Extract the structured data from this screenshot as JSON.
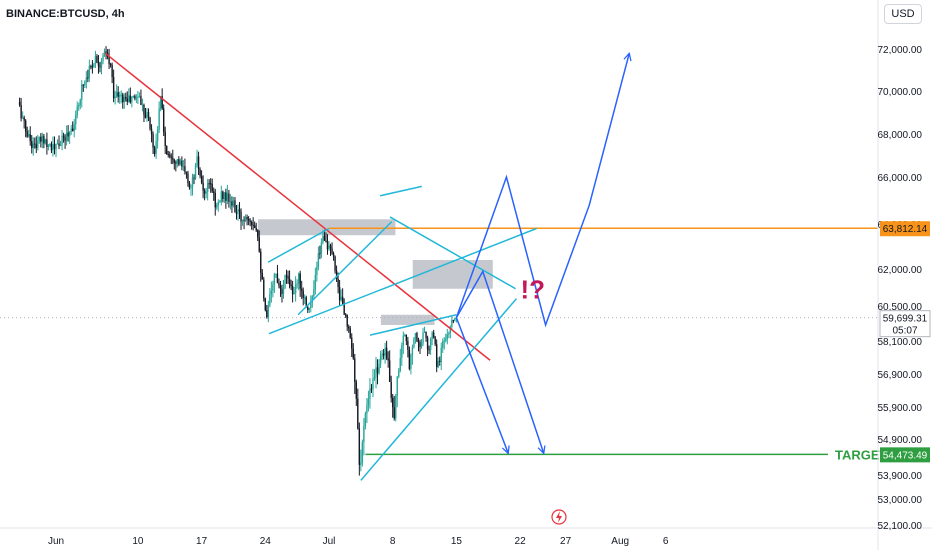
{
  "header": {
    "symbol": "BINANCE:BTCUSD, 4h",
    "currency": "USD"
  },
  "colors": {
    "up": "#26a69a",
    "down": "#131722",
    "trend": "#e8323c",
    "channel": "#22b8d8",
    "projection": "#2962ff",
    "resistance": "#f7931a",
    "target": "#2e9e40",
    "zone": "#b2b5be",
    "annotation": "#c2185b"
  },
  "chart_data": {
    "type": "candlestick",
    "ylim": [
      52100,
      73000
    ],
    "y_ticks": [
      {
        "value": 72000,
        "label": "72,000.00"
      },
      {
        "value": 70000,
        "label": "70,000.00"
      },
      {
        "value": 68000,
        "label": "68,000.00"
      },
      {
        "value": 66000,
        "label": "66,000.00"
      },
      {
        "value": 64000,
        "label": "64,000.00"
      },
      {
        "value": 62000,
        "label": "62,000.00"
      },
      {
        "value": 60500,
        "label": "60,500.00"
      },
      {
        "value": 58100,
        "label": "58,100.00"
      },
      {
        "value": 56900,
        "label": "56,900.00"
      },
      {
        "value": 55900,
        "label": "55,900.00"
      },
      {
        "value": 54900,
        "label": "54,900.00"
      },
      {
        "value": 53900,
        "label": "53,900.00"
      },
      {
        "value": 53000,
        "label": "53,000.00"
      },
      {
        "value": 52100,
        "label": "52,100.00"
      }
    ],
    "x_ticks": [
      {
        "day": 0,
        "label": "Jun"
      },
      {
        "day": 9,
        "label": "10"
      },
      {
        "day": 16,
        "label": "17"
      },
      {
        "day": 23,
        "label": "24"
      },
      {
        "day": 30,
        "label": "Jul"
      },
      {
        "day": 37,
        "label": "8"
      },
      {
        "day": 44,
        "label": "15"
      },
      {
        "day": 51,
        "label": "22"
      },
      {
        "day": 56,
        "label": "27"
      },
      {
        "day": 62,
        "label": "Aug"
      },
      {
        "day": 67,
        "label": "6"
      }
    ],
    "path_points": [
      [
        -4,
        69500
      ],
      [
        -3.2,
        68200
      ],
      [
        -2.3,
        67400
      ],
      [
        -1.2,
        67800
      ],
      [
        0,
        67300
      ],
      [
        1.3,
        67900
      ],
      [
        2.3,
        68600
      ],
      [
        3,
        70200
      ],
      [
        3.7,
        70900
      ],
      [
        4.5,
        71600
      ],
      [
        5,
        71300
      ],
      [
        5.6,
        71800
      ],
      [
        6.2,
        71100
      ],
      [
        6.5,
        69900
      ],
      [
        7.2,
        69700
      ],
      [
        8.4,
        69600
      ],
      [
        9.3,
        69800
      ],
      [
        9.7,
        69200
      ],
      [
        10.3,
        68800
      ],
      [
        11,
        67100
      ],
      [
        11.7,
        69800
      ],
      [
        12.2,
        67200
      ],
      [
        13,
        67000
      ],
      [
        14,
        66500
      ],
      [
        15,
        65500
      ],
      [
        15.7,
        66800
      ],
      [
        16.3,
        65200
      ],
      [
        17.2,
        65700
      ],
      [
        17.8,
        64700
      ],
      [
        18.5,
        65300
      ],
      [
        19.6,
        64800
      ],
      [
        20.5,
        64200
      ],
      [
        21.3,
        64400
      ],
      [
        22.3,
        63800
      ],
      [
        22.7,
        61900
      ],
      [
        23,
        60700
      ],
      [
        23.3,
        59500
      ],
      [
        23.7,
        61200
      ],
      [
        24.3,
        61800
      ],
      [
        25,
        61200
      ],
      [
        25.6,
        61900
      ],
      [
        26.3,
        60800
      ],
      [
        26.8,
        61700
      ],
      [
        27.4,
        60900
      ],
      [
        28,
        60300
      ],
      [
        28.5,
        61100
      ],
      [
        29,
        62500
      ],
      [
        29.6,
        63600
      ],
      [
        30.2,
        62800
      ],
      [
        30.7,
        62400
      ],
      [
        31.2,
        61200
      ],
      [
        31.8,
        60200
      ],
      [
        32.3,
        58800
      ],
      [
        33,
        56900
      ],
      [
        33.5,
        54100
      ],
      [
        34,
        55200
      ],
      [
        34.5,
        56100
      ],
      [
        35.1,
        56700
      ],
      [
        35.7,
        57400
      ],
      [
        36.3,
        57900
      ],
      [
        36.8,
        56900
      ],
      [
        37.3,
        55600
      ],
      [
        37.8,
        57100
      ],
      [
        38.4,
        58500
      ],
      [
        39,
        57300
      ],
      [
        39.6,
        58600
      ],
      [
        40.1,
        57800
      ],
      [
        40.7,
        58800
      ],
      [
        41.1,
        57500
      ],
      [
        41.6,
        58700
      ],
      [
        42.1,
        57000
      ],
      [
        42.6,
        58100
      ],
      [
        43.2,
        58400
      ],
      [
        43.6,
        59300
      ],
      [
        44,
        59700
      ]
    ],
    "series": [
      {
        "type": "line",
        "style": "trend",
        "points": [
          [
            5.4,
            71800
          ],
          [
            47.7,
            57400
          ]
        ]
      },
      {
        "type": "line",
        "style": "channel",
        "points": [
          [
            23.4,
            58600
          ],
          [
            52.8,
            63800
          ]
        ]
      },
      {
        "type": "line",
        "style": "channel",
        "points": [
          [
            33.5,
            53700
          ],
          [
            50.6,
            60800
          ]
        ]
      },
      {
        "type": "line",
        "style": "channel",
        "points": [
          [
            23.3,
            62300
          ],
          [
            30,
            63800
          ]
        ]
      },
      {
        "type": "line",
        "style": "channel",
        "points": [
          [
            34.5,
            58500
          ],
          [
            44,
            59900
          ]
        ]
      },
      {
        "type": "line",
        "style": "channel",
        "points": [
          [
            26.6,
            59900
          ],
          [
            36.9,
            64100
          ]
        ]
      },
      {
        "type": "line",
        "style": "channel",
        "points": [
          [
            36.7,
            64300
          ],
          [
            50.5,
            61200
          ]
        ]
      },
      {
        "type": "line",
        "style": "channel",
        "points": [
          [
            35.6,
            65200
          ],
          [
            40.2,
            65600
          ]
        ]
      },
      {
        "type": "arrow",
        "style": "projection",
        "points": [
          [
            44,
            59700
          ],
          [
            49.7,
            54500
          ]
        ]
      },
      {
        "type": "arrow",
        "style": "projection",
        "points": [
          [
            44,
            59700
          ],
          [
            46.9,
            61900
          ],
          [
            53.6,
            54500
          ]
        ]
      },
      {
        "type": "arrow",
        "style": "projection",
        "points": [
          [
            44,
            59700
          ],
          [
            49.5,
            66000
          ],
          [
            53.8,
            59200
          ],
          [
            58.6,
            64800
          ],
          [
            63,
            71800
          ]
        ]
      },
      {
        "type": "hline",
        "style": "resistance",
        "value": 63812.14
      },
      {
        "type": "hline",
        "style": "target",
        "value": 54473.49
      },
      {
        "type": "zone",
        "x": [
          22.2,
          37.3
        ],
        "y": [
          63500,
          64200
        ]
      },
      {
        "type": "zone",
        "x": [
          39.2,
          48
        ],
        "y": [
          61200,
          62400
        ]
      },
      {
        "type": "zone",
        "x": [
          35.7,
          41.6
        ],
        "y": [
          59200,
          59900
        ]
      }
    ],
    "labels": {
      "target": "TARGET",
      "annotation": "!?"
    },
    "price_tags": [
      {
        "value": 63812.14,
        "label": "63,812.14",
        "style": "resistance"
      },
      {
        "value": 59699.31,
        "label": "59,699.31",
        "sublabel": "05:07",
        "style": "current"
      },
      {
        "value": 54473.49,
        "label": "54,473.49",
        "style": "target"
      }
    ]
  }
}
